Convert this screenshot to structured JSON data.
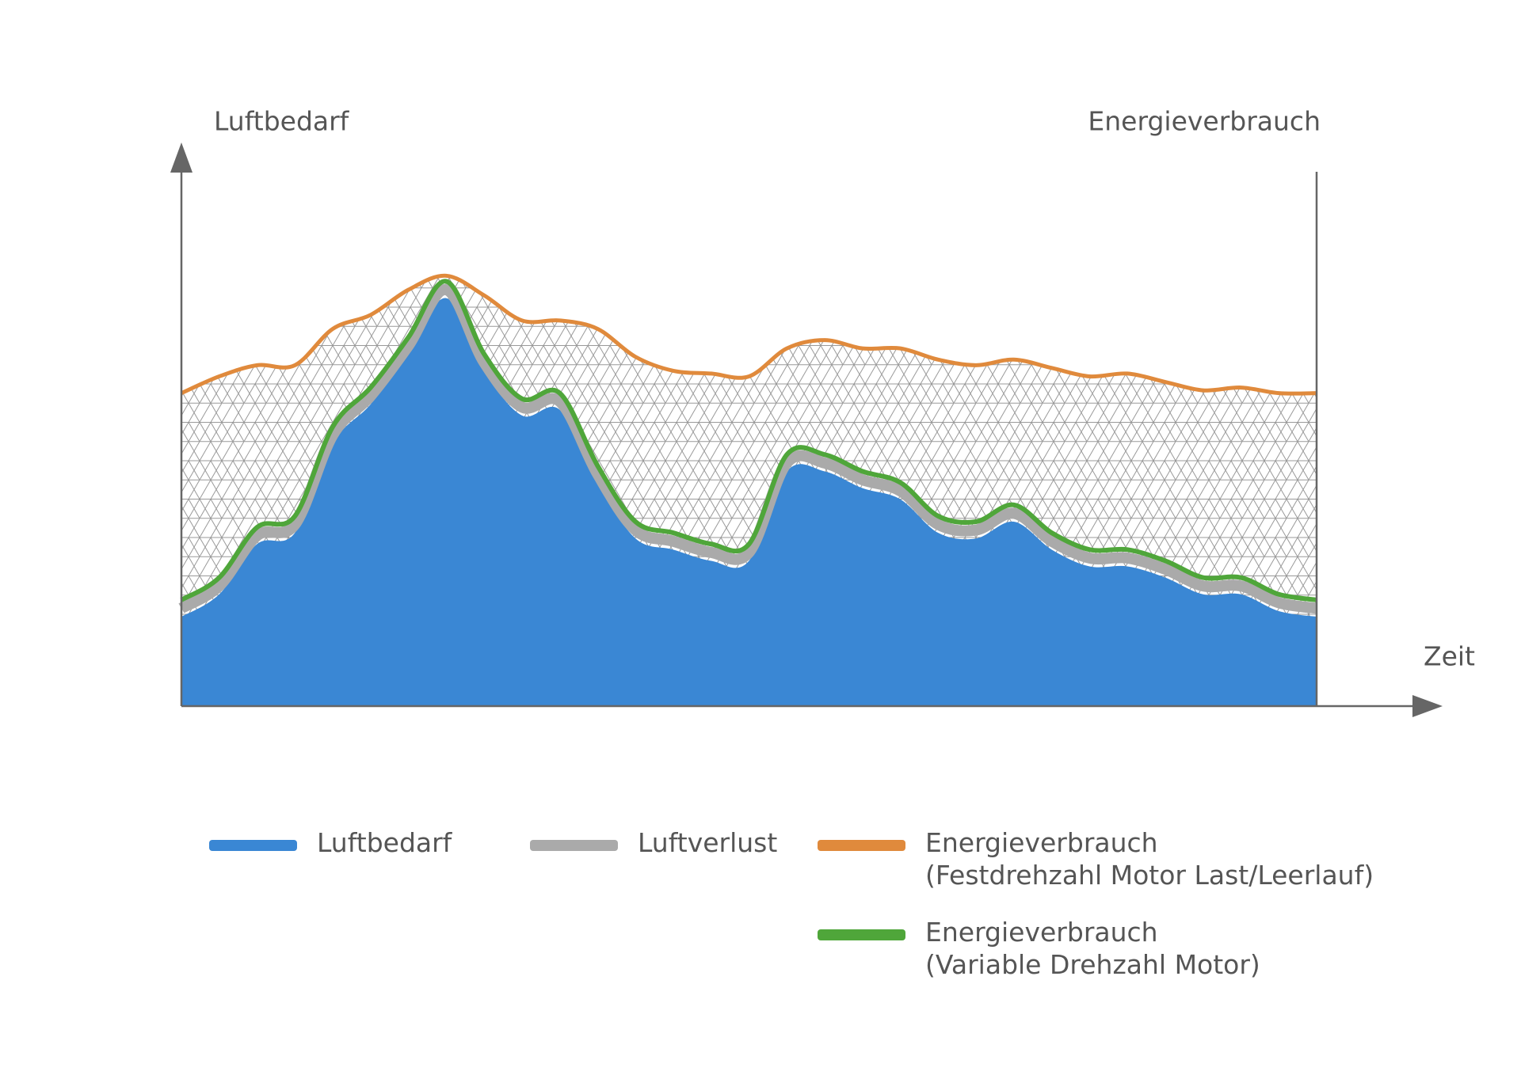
{
  "chart_data": {
    "type": "area",
    "y_label": "Luftbedarf",
    "y2_label": "Energieverbrauch",
    "x_label": "Zeit",
    "categories": [
      null,
      null,
      null,
      null,
      null,
      null,
      null,
      null,
      null,
      null,
      null,
      null,
      null,
      null,
      null,
      null,
      null,
      null,
      null,
      null,
      null,
      null,
      null,
      null,
      null,
      null,
      null,
      null,
      null,
      null,
      null
    ],
    "ylim": [
      0,
      100
    ],
    "series": [
      {
        "name": "Luftbedarf",
        "color": "#3a87d4",
        "style": "area",
        "values": [
          16,
          20,
          29,
          31,
          47,
          54,
          63,
          73,
          60,
          52,
          53,
          40,
          30,
          28,
          26,
          26,
          42,
          42,
          39,
          37,
          31,
          30,
          33,
          28,
          25,
          25,
          23,
          20,
          20,
          17,
          16
        ]
      },
      {
        "name": "Luftverlust",
        "color": "#aaaaaa",
        "style": "line",
        "values": [
          17.5,
          21.5,
          30.5,
          32.5,
          48.5,
          55.5,
          64.5,
          74.5,
          61.5,
          53.5,
          54.5,
          41.5,
          31.5,
          29.5,
          27.5,
          27.5,
          43.5,
          43.5,
          40.5,
          38.5,
          32.5,
          31.5,
          34.5,
          29.5,
          26.5,
          26.5,
          24.5,
          21.5,
          21.5,
          18.5,
          17.5
        ]
      },
      {
        "name": "Energieverbrauch\n(Festdrehzahl Motor Last/Leerlauf)",
        "color": "#e08a3c",
        "style": "hatched",
        "values": [
          56,
          59,
          61,
          61,
          67.5,
          70,
          74.5,
          77,
          73.5,
          69,
          69,
          67.5,
          62.5,
          60,
          59.5,
          59,
          64,
          65.5,
          64,
          64,
          62,
          61,
          62,
          60.5,
          59,
          59.5,
          58,
          56.5,
          57,
          56,
          56
        ]
      },
      {
        "name": "Energieverbrauch\n(Variable Drehzahl Motor)",
        "color": "#4fa63a",
        "style": "line",
        "values": [
          19,
          23,
          32,
          34,
          50,
          57,
          66,
          76,
          63,
          55,
          56,
          43,
          33,
          31,
          29,
          29,
          45,
          45,
          42,
          40,
          34,
          33,
          36,
          31,
          28,
          28,
          26,
          23,
          23,
          20,
          19
        ]
      }
    ]
  }
}
